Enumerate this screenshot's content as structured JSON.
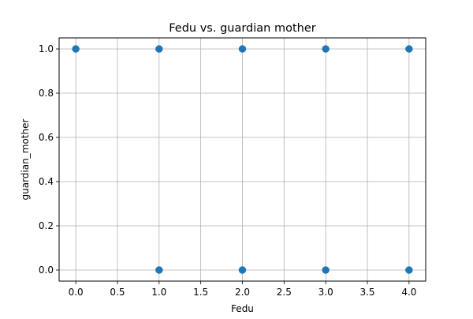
{
  "chart_data": {
    "type": "scatter",
    "title": "Fedu vs. guardian mother",
    "xlabel": "Fedu",
    "ylabel": "guardian_mother",
    "xlim": [
      -0.2,
      4.2
    ],
    "ylim": [
      -0.05,
      1.05
    ],
    "xticks": [
      "0.0",
      "0.5",
      "1.0",
      "1.5",
      "2.0",
      "2.5",
      "3.0",
      "3.5",
      "4.0"
    ],
    "yticks": [
      "0.0",
      "0.2",
      "0.4",
      "0.6",
      "0.8",
      "1.0"
    ],
    "grid": true,
    "points": [
      {
        "x": 0,
        "y": 1
      },
      {
        "x": 1,
        "y": 1
      },
      {
        "x": 2,
        "y": 1
      },
      {
        "x": 3,
        "y": 1
      },
      {
        "x": 4,
        "y": 1
      },
      {
        "x": 1,
        "y": 0
      },
      {
        "x": 2,
        "y": 0
      },
      {
        "x": 3,
        "y": 0
      },
      {
        "x": 4,
        "y": 0
      }
    ],
    "color": "#1f77b4"
  }
}
